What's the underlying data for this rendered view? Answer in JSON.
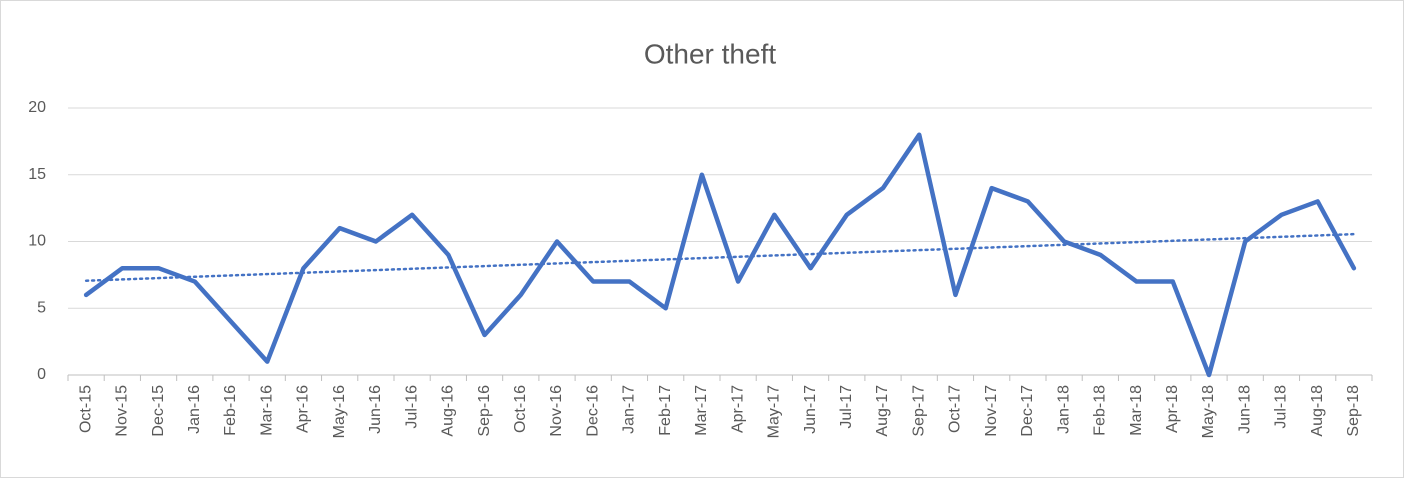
{
  "chart_data": {
    "type": "line",
    "title": "Other theft",
    "categories": [
      "Oct-15",
      "Nov-15",
      "Dec-15",
      "Jan-16",
      "Feb-16",
      "Mar-16",
      "Apr-16",
      "May-16",
      "Jun-16",
      "Jul-16",
      "Aug-16",
      "Sep-16",
      "Oct-16",
      "Nov-16",
      "Dec-16",
      "Jan-17",
      "Feb-17",
      "Mar-17",
      "Apr-17",
      "May-17",
      "Jun-17",
      "Jul-17",
      "Aug-17",
      "Sep-17",
      "Oct-17",
      "Nov-17",
      "Dec-17",
      "Jan-18",
      "Feb-18",
      "Mar-18",
      "Apr-18",
      "May-18",
      "Jun-18",
      "Jul-18",
      "Aug-18",
      "Sep-18"
    ],
    "values": [
      6,
      8,
      8,
      7,
      4,
      1,
      8,
      11,
      10,
      12,
      9,
      3,
      6,
      10,
      7,
      7,
      5,
      15,
      7,
      12,
      8,
      12,
      14,
      18,
      6,
      14,
      13,
      10,
      9,
      7,
      7,
      0,
      10,
      12,
      13,
      8
    ],
    "color": "#4472c4",
    "trendline": "linear",
    "ylim": [
      0,
      20
    ],
    "yticks": [
      0,
      5,
      10,
      15,
      20
    ],
    "grid": true
  }
}
